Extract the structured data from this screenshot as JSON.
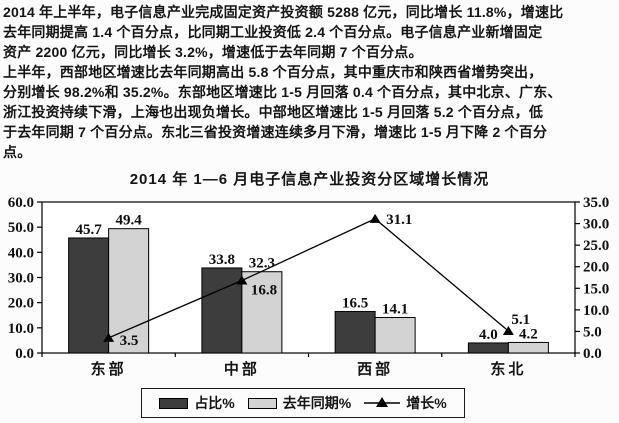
{
  "page": {
    "background": "#fcfcfc"
  },
  "document": {
    "lines": [
      "2014 年上半年，电子信息产业完成固定资产投资额 5288 亿元，同比增长 11.8%，增速比",
      "去年同期提高 1.4 个百分点，比同期工业投资低 2.4 个百分点。电子信息产业新增固定",
      "资产 2200 亿元，同比增长 3.2%，增速低于去年同期 7 个百分点。",
      "上半年，西部地区增速比去年同期高出 5.8 个百分点，其中重庆市和陕西省增势突出，",
      "分别增长 98.2%和 35.2%。东部地区增速比 1-5 月回落 0.4 个百分点，其中北京、广东、",
      "浙江投资持续下滑，上海也出现负增长。中部地区增速比 1-5 月回落 5.2 个百分点，低",
      "于去年同期 7 个百分点。东北三省投资增速连续多月下滑，增速比 1-5 月下降 2 个百分",
      "点。"
    ]
  },
  "chart_data": {
    "type": "bar",
    "title": "2014 年 1—6 月电子信息产业投资分区域增长情况",
    "categories": [
      "东部",
      "中部",
      "西部",
      "东北"
    ],
    "series": [
      {
        "name": "占比%",
        "type": "bar",
        "axis": "left",
        "color": "#3d3d3d",
        "values": [
          45.7,
          33.8,
          16.5,
          4.0
        ]
      },
      {
        "name": "去年同期%",
        "type": "bar",
        "axis": "left",
        "color": "#d3d3d3",
        "values": [
          49.4,
          32.3,
          14.1,
          4.2
        ]
      },
      {
        "name": "增长%",
        "type": "line",
        "axis": "right",
        "color": "#000000",
        "marker": "triangle",
        "values": [
          3.5,
          16.8,
          31.1,
          5.1
        ]
      }
    ],
    "left_axis": {
      "min": 0,
      "max": 60,
      "step": 10,
      "tick_labels": [
        "0.0",
        "10.0",
        "20.0",
        "30.0",
        "40.0",
        "50.0",
        "60.0"
      ]
    },
    "right_axis": {
      "min": 0,
      "max": 35,
      "step": 5,
      "tick_labels": [
        "0.0",
        "5.0",
        "10.0",
        "15.0",
        "20.0",
        "25.0",
        "30.0",
        "35.0"
      ]
    },
    "legend_position": "bottom",
    "grid": false
  }
}
